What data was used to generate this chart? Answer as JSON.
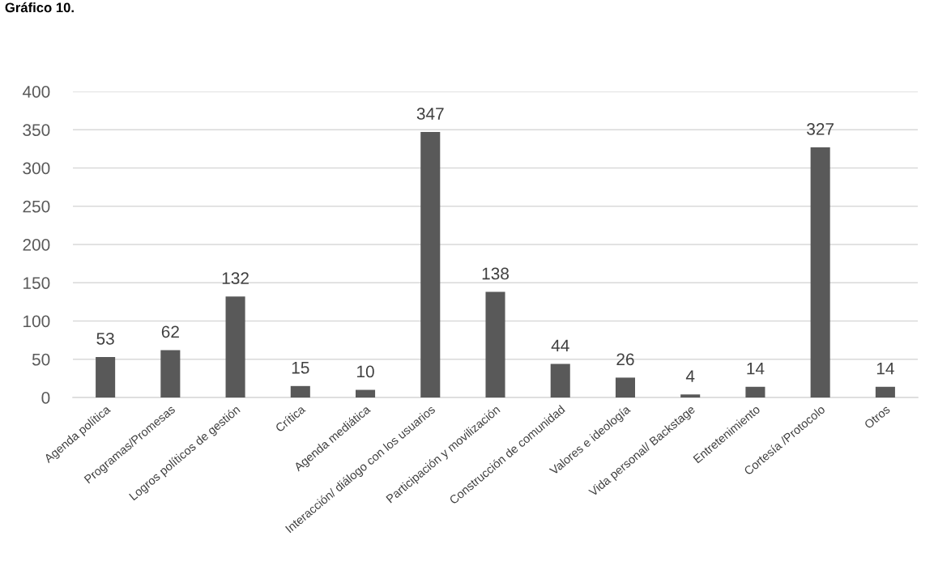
{
  "chart_data": {
    "type": "bar",
    "annotations": [
      "Gráfico 10."
    ],
    "categories": [
      "Agenda política",
      "Programas/Promesas",
      "Logros políticos de gestión",
      "Crítica",
      "Agenda mediática",
      "Interacción/ diálogo con los usuarios",
      "Participación y movilización",
      "Construcción de comunidad",
      "Valores e ideología",
      "Vida personal/ Backstage",
      "Entretenimiento",
      "Cortesía /Protocolo",
      "Otros"
    ],
    "values": [
      53,
      62,
      132,
      15,
      10,
      347,
      138,
      44,
      26,
      4,
      14,
      327,
      14
    ],
    "color": "#595959",
    "data_labels": true,
    "ylim": [
      0,
      400
    ],
    "yticks": [
      0,
      50,
      100,
      150,
      200,
      250,
      300,
      350,
      400
    ],
    "grid": "y",
    "legend": false
  }
}
